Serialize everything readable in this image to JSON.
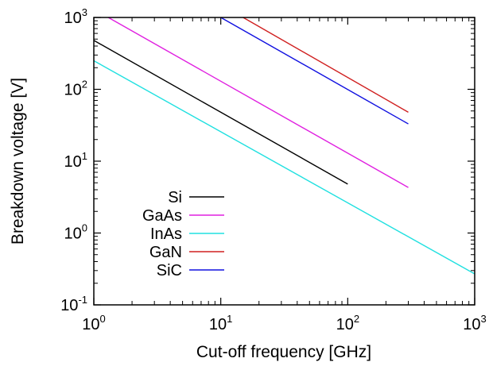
{
  "chart_data": {
    "type": "line",
    "xlabel": "Cut-off frequency [GHz]",
    "ylabel": "Breakdown voltage [V]",
    "xscale": "log",
    "yscale": "log",
    "xlim": [
      1,
      1000
    ],
    "ylim": [
      0.1,
      1000
    ],
    "grid": false,
    "legend_position": "bottom-left",
    "x_ticks": [
      {
        "base": "10",
        "exp": "0"
      },
      {
        "base": "10",
        "exp": "1"
      },
      {
        "base": "10",
        "exp": "2"
      },
      {
        "base": "10",
        "exp": "3"
      }
    ],
    "y_ticks": [
      {
        "base": "10",
        "exp": "-1"
      },
      {
        "base": "10",
        "exp": "0"
      },
      {
        "base": "10",
        "exp": "1"
      },
      {
        "base": "10",
        "exp": "2"
      },
      {
        "base": "10",
        "exp": "3"
      }
    ],
    "series": [
      {
        "name": "Si",
        "color": "#000000",
        "x": [
          1,
          100
        ],
        "y": [
          480,
          4.8
        ]
      },
      {
        "name": "GaAs",
        "color": "#e020e0",
        "x": [
          1.3,
          300
        ],
        "y": [
          1000,
          4.3
        ]
      },
      {
        "name": "InAs",
        "color": "#20e0e0",
        "x": [
          1,
          1000
        ],
        "y": [
          250,
          0.27
        ]
      },
      {
        "name": "GaN",
        "color": "#d02020",
        "x": [
          15,
          300
        ],
        "y": [
          1000,
          48
        ]
      },
      {
        "name": "SiC",
        "color": "#1010e0",
        "x": [
          10,
          300
        ],
        "y": [
          1000,
          33
        ]
      }
    ]
  }
}
